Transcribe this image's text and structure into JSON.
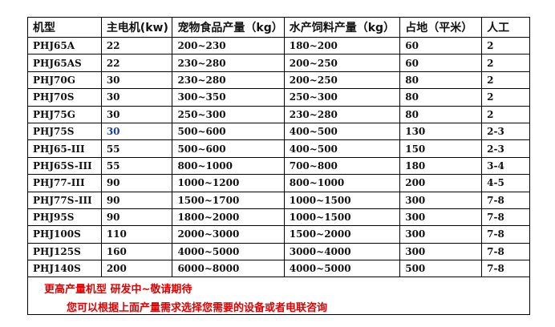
{
  "headers": [
    "机型",
    "主电机(kw)",
    "宠物食品产量（kg）",
    "水产饲料产量（kg）",
    "占地（平米）",
    "人工"
  ],
  "rows": [
    [
      "PHJ65A",
      "22",
      "200~230",
      "180~200",
      "60",
      "2"
    ],
    [
      "PHJ65AS",
      "22",
      "230~280",
      "200~250",
      "60",
      "2"
    ],
    [
      "PHJ70G",
      "30",
      "230~280",
      "200~250",
      "80",
      "2"
    ],
    [
      "PHJ70S",
      "30",
      "300~350",
      "250~300",
      "80",
      "2"
    ],
    [
      "PHJ75G",
      "30",
      "250~300",
      "230~280",
      "80",
      "2"
    ],
    [
      "PHJ75S",
      "30",
      "500~600",
      "400~500",
      "130",
      "2-3"
    ],
    [
      "PHJ65-III",
      "55",
      "500~600",
      "400~500",
      "150",
      "2-3"
    ],
    [
      "PHJ65S-III",
      "55",
      "800~1000",
      "700~800",
      "180",
      "3-4"
    ],
    [
      "PHJ77-III",
      "90",
      "1000~1200",
      "800~1000",
      "200",
      "4-5"
    ],
    [
      "PHJ77S-III",
      "90",
      "1500~1700",
      "1000~1500",
      "300",
      "7-8"
    ],
    [
      "PHJ95S",
      "90",
      "1800~2000",
      "1000~1500",
      "300",
      "7-8"
    ],
    [
      "PHJ100S",
      "110",
      "2000~3000",
      "1500~2000",
      "300",
      "7-8"
    ],
    [
      "PHJ125S",
      "160",
      "4000~5000",
      "3000~4000",
      "300",
      "7-8"
    ],
    [
      "PHJ140S",
      "200",
      "6000~8000",
      "4000~5000",
      "500",
      "7-8"
    ]
  ],
  "footer": {
    "line1": "更高产量机型  研发中~敬请期待",
    "line2": "您可以根据上面产量需求选择您需要的设备或者电联咨询",
    "color": "#e00000"
  }
}
